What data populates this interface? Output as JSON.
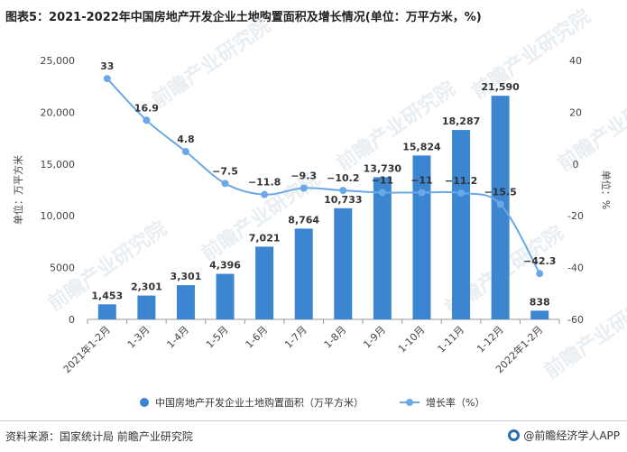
{
  "title": "图表5：2021-2022年中国房地产开发企业土地购置面积及增长情况(单位：万平方米，%)",
  "watermark": "前瞻产业研究院",
  "footer": {
    "source": "资料来源：国家统计局 前瞻产业研究院",
    "brand": "@前瞻经济学人APP"
  },
  "colors": {
    "bar": "#3c86d1",
    "line": "#6aa8e6",
    "axis": "#999999",
    "text": "#444444"
  },
  "chart_data": {
    "type": "bar",
    "categories": [
      "2021年1-2月",
      "1-3月",
      "1-4月",
      "1-5月",
      "1-6月",
      "1-7月",
      "1-8月",
      "1-9月",
      "1-10月",
      "1-11月",
      "1-12月",
      "2022年1-2月"
    ],
    "series": [
      {
        "name": "中国房地产开发企业土地购置面积（万平方米）",
        "type": "bar",
        "axis": "left",
        "values": [
          1453,
          2301,
          3301,
          4396,
          7021,
          8764,
          10733,
          13730,
          15824,
          18287,
          21590,
          838
        ],
        "labels": [
          "1,453",
          "2,301",
          "3,301",
          "4,396",
          "7,021",
          "8,764",
          "10,733",
          "13,730",
          "15,824",
          "18,287",
          "21,590",
          "838"
        ]
      },
      {
        "name": "增长率（%）",
        "type": "line",
        "axis": "right",
        "values": [
          33,
          16.9,
          4.8,
          -7.5,
          -11.8,
          -9.3,
          -10.2,
          -11,
          -11,
          -11.2,
          -15.5,
          -42.3
        ],
        "labels": [
          "33",
          "16.9",
          "4.8",
          "−7.5",
          "−11.8",
          "−9.3",
          "−10.2",
          "−11",
          "−11",
          "−11.2",
          "−15.5",
          "−42.3"
        ]
      }
    ],
    "ylabel": "单位：万平方米",
    "y2label": "单位：%",
    "ylim": [
      0,
      25000
    ],
    "y2lim": [
      -60,
      40
    ],
    "yticks": [
      "0",
      "5000",
      "10,000",
      "15,000",
      "20,000",
      "25,000"
    ],
    "y2ticks": [
      "-60",
      "-40",
      "-20",
      "0",
      "20",
      "40"
    ],
    "legend_position": "bottom"
  }
}
